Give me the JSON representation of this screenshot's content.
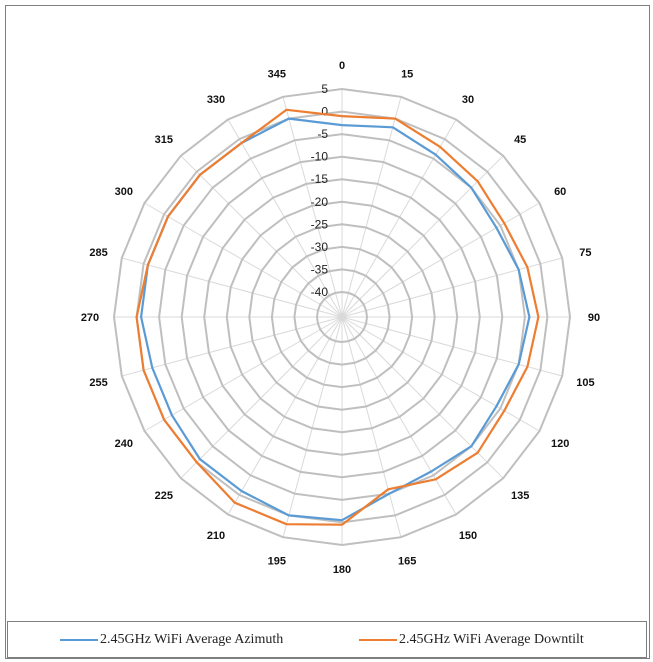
{
  "chart_data": {
    "type": "radar",
    "angles": [
      "0",
      "15",
      "30",
      "45",
      "60",
      "75",
      "90",
      "105",
      "120",
      "135",
      "150",
      "165",
      "180",
      "195",
      "210",
      "225",
      "240",
      "255",
      "270",
      "285",
      "300",
      "315",
      "330",
      "345"
    ],
    "radial_ticks": [
      "5",
      "0",
      "-5",
      "-10",
      "-15",
      "-20",
      "-25",
      "-30",
      "-35",
      "-40"
    ],
    "rlim": [
      -40,
      5
    ],
    "series": [
      {
        "name": "2.45GHz WiFi Average Azimuth",
        "color": "#5b9bd5",
        "values": [
          -3,
          -2,
          -4,
          -5,
          -6,
          -5,
          -4,
          -5,
          -6,
          -5,
          -6,
          -5,
          -0.5,
          0,
          -1,
          -1,
          -2,
          -2,
          -1,
          -1,
          -1,
          -1,
          -1,
          0
        ]
      },
      {
        "name": "2.45GHz WiFi Average Downtilt",
        "color": "#ed7d31",
        "values": [
          -1,
          0,
          -2,
          -3,
          -4,
          -3,
          -2,
          -3,
          -4,
          -3,
          -4,
          -6,
          0.5,
          2,
          2,
          0,
          0,
          0,
          0,
          -1,
          -1,
          -1,
          -1,
          2
        ]
      }
    ],
    "legend_position": "bottom"
  }
}
